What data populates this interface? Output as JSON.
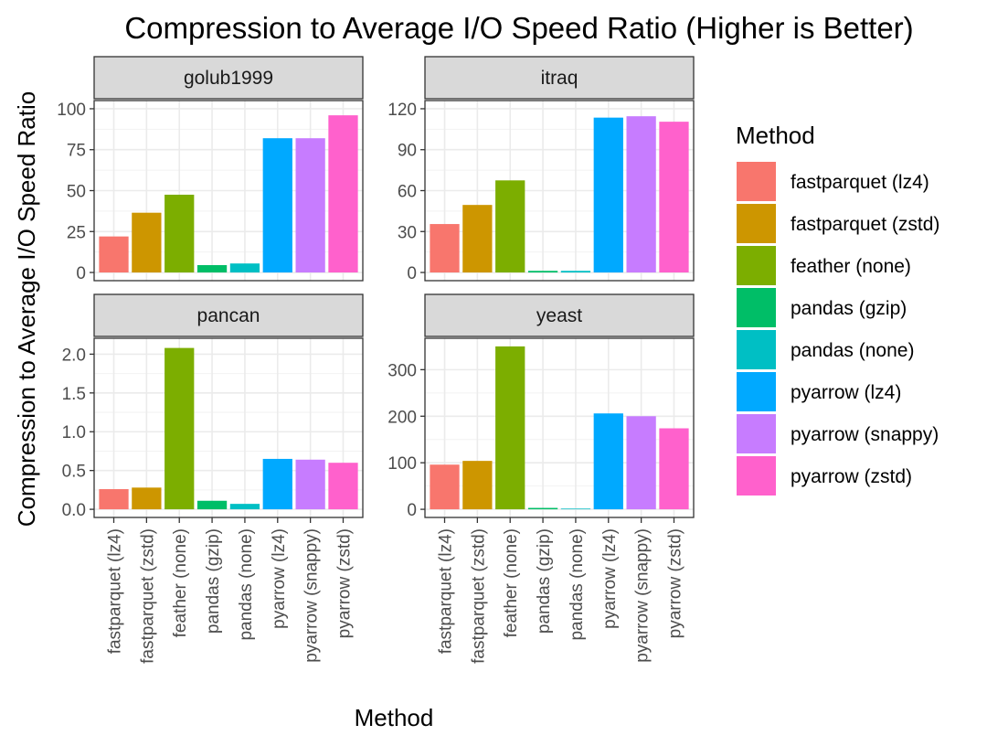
{
  "chart_data": {
    "type": "bar",
    "title": "Compression to Average I/O Speed Ratio (Higher is Better)",
    "xlabel": "Method",
    "ylabel": "Compression to Average I/O Speed Ratio",
    "legend": {
      "title": "Method",
      "placement": "right"
    },
    "grid": true,
    "categories": [
      "fastparquet (lz4)",
      "fastparquet (zstd)",
      "feather (none)",
      "pandas (gzip)",
      "pandas (none)",
      "pyarrow (lz4)",
      "pyarrow (snappy)",
      "pyarrow (zstd)"
    ],
    "colors": [
      "#F8766D",
      "#CD9600",
      "#7CAE00",
      "#00BE67",
      "#00BFC4",
      "#00A9FF",
      "#C77CFF",
      "#FF61CC"
    ],
    "panels": [
      {
        "title": "golub1999",
        "ylim": [
          0,
          100
        ],
        "yticks": [
          0,
          25,
          50,
          75,
          100
        ],
        "ytick_labels": [
          "0",
          "25",
          "50",
          "75",
          "100"
        ],
        "values": [
          22,
          36.5,
          47.5,
          4.5,
          5.5,
          82,
          82,
          96
        ]
      },
      {
        "title": "itraq",
        "ylim": [
          0,
          120
        ],
        "yticks": [
          0,
          30,
          60,
          90,
          120
        ],
        "ytick_labels": [
          "0",
          "30",
          "60",
          "90",
          "120"
        ],
        "values": [
          35.5,
          49.5,
          67.5,
          1.2,
          1.2,
          113.5,
          114.5,
          110.5
        ]
      },
      {
        "title": "pancan",
        "ylim": [
          0,
          2.1
        ],
        "yticks": [
          0,
          0.5,
          1.0,
          1.5,
          2.0
        ],
        "ytick_labels": [
          "0.0",
          "0.5",
          "1.0",
          "1.5",
          "2.0"
        ],
        "values": [
          0.26,
          0.28,
          2.08,
          0.11,
          0.07,
          0.65,
          0.64,
          0.6
        ]
      },
      {
        "title": "yeast",
        "ylim": [
          0,
          350
        ],
        "yticks": [
          0,
          100,
          200,
          300
        ],
        "ytick_labels": [
          "0",
          "100",
          "200",
          "300"
        ],
        "values": [
          96,
          104,
          350,
          3,
          1.5,
          206,
          200,
          174
        ]
      }
    ]
  }
}
